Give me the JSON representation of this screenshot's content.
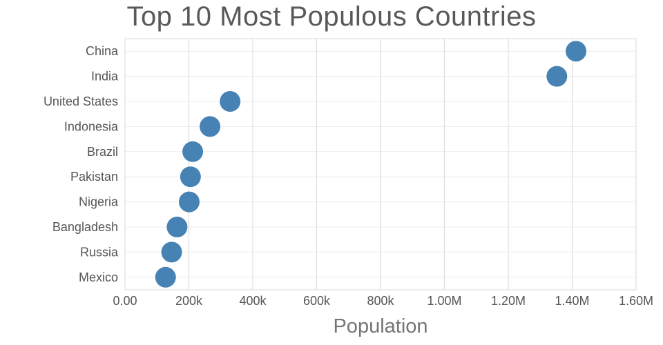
{
  "chart_data": {
    "type": "scatter",
    "title": "Top 10 Most Populous Countries",
    "xlabel": "Population",
    "ylabel": "",
    "categories": [
      "China",
      "India",
      "United States",
      "Indonesia",
      "Brazil",
      "Pakistan",
      "Nigeria",
      "Bangladesh",
      "Russia",
      "Mexico"
    ],
    "values": [
      1412000,
      1352000,
      329000,
      266000,
      212000,
      205000,
      201000,
      163000,
      146000,
      127000
    ],
    "xlim": [
      0,
      1600000
    ],
    "xticks": [
      {
        "value": 0,
        "label": "0.00"
      },
      {
        "value": 200000,
        "label": "200k"
      },
      {
        "value": 400000,
        "label": "400k"
      },
      {
        "value": 600000,
        "label": "600k"
      },
      {
        "value": 800000,
        "label": "800k"
      },
      {
        "value": 1000000,
        "label": "1.00M"
      },
      {
        "value": 1200000,
        "label": "1.20M"
      },
      {
        "value": 1400000,
        "label": "1.40M"
      },
      {
        "value": 1600000,
        "label": "1.60M"
      }
    ],
    "grid": true,
    "legend_position": "none",
    "dot_color": "#4682b4",
    "dot_radius": 15,
    "grid_color": "#d9d9d9",
    "row_grid_color": "#ececec",
    "label_color": "#555555",
    "title_color": "#595959",
    "axis_title_color": "#757575"
  }
}
